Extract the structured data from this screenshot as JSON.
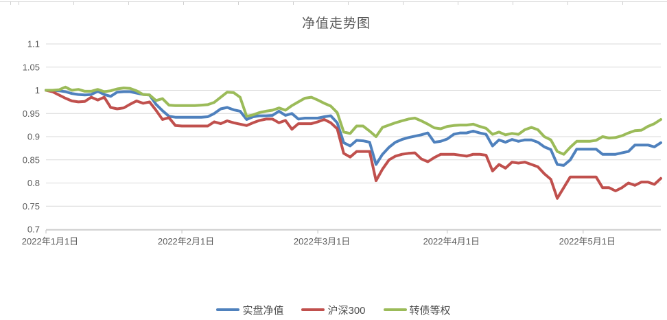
{
  "chart_data": {
    "type": "line",
    "title": "净值走势图",
    "grid": true,
    "legend_position": "bottom",
    "x_axis": {
      "tick_labels": [
        "2022年1月1日",
        "2022年2月1日",
        "2022年3月1日",
        "2022年4月1日",
        "2022年5月1日"
      ],
      "tick_indices": [
        0,
        21,
        42,
        62,
        83
      ],
      "point_count": 96
    },
    "y_axis": {
      "min": 0.7,
      "max": 1.1,
      "step": 0.05,
      "tick_values": [
        1.1,
        1.05,
        1.0,
        0.95,
        0.9,
        0.85,
        0.8,
        0.75,
        0.7
      ],
      "tick_labels": [
        "1.1",
        "1.05",
        "1",
        "0.95",
        "0.9",
        "0.85",
        "0.8",
        "0.75",
        "0.7"
      ]
    },
    "series": [
      {
        "name": "实盘净值",
        "color": "#4F81BD",
        "values": [
          1.0,
          1.0,
          0.999,
          0.997,
          0.993,
          0.991,
          0.99,
          0.991,
          0.998,
          0.991,
          0.987,
          0.996,
          0.997,
          0.997,
          0.994,
          0.991,
          0.99,
          0.97,
          0.956,
          0.944,
          0.942,
          0.942,
          0.942,
          0.942,
          0.942,
          0.943,
          0.95,
          0.96,
          0.963,
          0.958,
          0.955,
          0.937,
          0.943,
          0.945,
          0.945,
          0.946,
          0.955,
          0.946,
          0.95,
          0.938,
          0.94,
          0.94,
          0.94,
          0.943,
          0.945,
          0.93,
          0.887,
          0.88,
          0.892,
          0.891,
          0.888,
          0.84,
          0.862,
          0.877,
          0.888,
          0.894,
          0.898,
          0.901,
          0.904,
          0.908,
          0.888,
          0.89,
          0.895,
          0.905,
          0.908,
          0.908,
          0.912,
          0.908,
          0.905,
          0.88,
          0.893,
          0.888,
          0.894,
          0.89,
          0.893,
          0.893,
          0.888,
          0.878,
          0.872,
          0.84,
          0.838,
          0.85,
          0.873,
          0.873,
          0.873,
          0.873,
          0.862,
          0.862,
          0.862,
          0.865,
          0.868,
          0.882,
          0.882,
          0.882,
          0.878,
          0.887
        ]
      },
      {
        "name": "沪深300",
        "color": "#C0504D",
        "values": [
          1.0,
          0.997,
          0.99,
          0.983,
          0.977,
          0.975,
          0.976,
          0.985,
          0.979,
          0.985,
          0.963,
          0.96,
          0.962,
          0.97,
          0.977,
          0.972,
          0.975,
          0.957,
          0.937,
          0.941,
          0.924,
          0.923,
          0.923,
          0.923,
          0.923,
          0.923,
          0.932,
          0.928,
          0.934,
          0.93,
          0.927,
          0.924,
          0.93,
          0.935,
          0.938,
          0.938,
          0.93,
          0.935,
          0.916,
          0.928,
          0.928,
          0.928,
          0.932,
          0.937,
          0.93,
          0.917,
          0.864,
          0.856,
          0.868,
          0.868,
          0.868,
          0.805,
          0.83,
          0.85,
          0.858,
          0.862,
          0.864,
          0.865,
          0.852,
          0.846,
          0.855,
          0.862,
          0.862,
          0.862,
          0.86,
          0.858,
          0.862,
          0.862,
          0.86,
          0.826,
          0.84,
          0.832,
          0.845,
          0.843,
          0.845,
          0.84,
          0.835,
          0.82,
          0.808,
          0.767,
          0.79,
          0.813,
          0.813,
          0.813,
          0.813,
          0.813,
          0.79,
          0.79,
          0.783,
          0.79,
          0.8,
          0.795,
          0.802,
          0.802,
          0.797,
          0.81
        ]
      },
      {
        "name": "转债等权",
        "color": "#9BBB59",
        "values": [
          1.0,
          1.0,
          1.001,
          1.007,
          1.0,
          1.002,
          0.998,
          0.998,
          1.002,
          0.997,
          0.999,
          1.003,
          1.005,
          1.004,
          0.999,
          0.991,
          0.99,
          0.978,
          0.982,
          0.968,
          0.967,
          0.967,
          0.967,
          0.967,
          0.968,
          0.969,
          0.974,
          0.985,
          0.996,
          0.995,
          0.985,
          0.944,
          0.947,
          0.952,
          0.955,
          0.957,
          0.962,
          0.957,
          0.967,
          0.975,
          0.983,
          0.985,
          0.979,
          0.972,
          0.966,
          0.952,
          0.91,
          0.907,
          0.923,
          0.923,
          0.912,
          0.9,
          0.92,
          0.925,
          0.93,
          0.934,
          0.938,
          0.94,
          0.934,
          0.927,
          0.919,
          0.917,
          0.922,
          0.924,
          0.925,
          0.925,
          0.927,
          0.922,
          0.918,
          0.905,
          0.91,
          0.904,
          0.907,
          0.905,
          0.915,
          0.92,
          0.915,
          0.9,
          0.893,
          0.868,
          0.862,
          0.877,
          0.89,
          0.89,
          0.89,
          0.892,
          0.9,
          0.897,
          0.898,
          0.902,
          0.908,
          0.913,
          0.914,
          0.922,
          0.928,
          0.937
        ]
      }
    ]
  },
  "styles": {
    "title_color": "#595959",
    "axis_label_color": "#595959",
    "gridline_color": "#d9d9d9",
    "axis_line_color": "#bfbfbf",
    "background": "#ffffff"
  }
}
